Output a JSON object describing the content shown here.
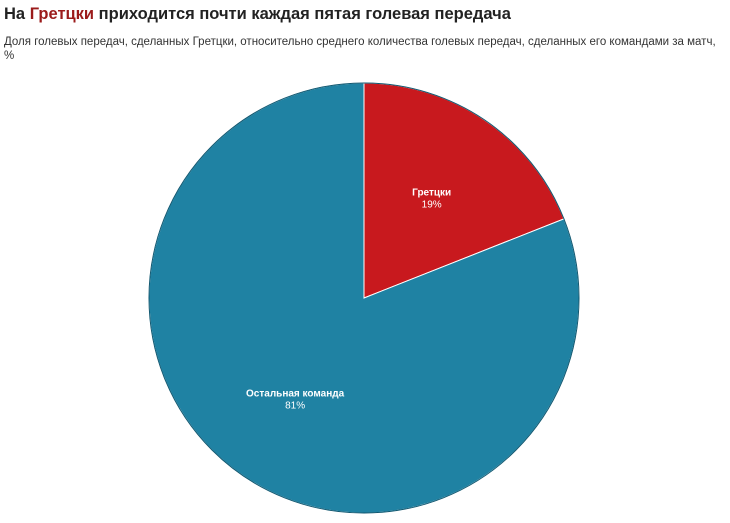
{
  "header": {
    "title_prefix": "На ",
    "title_highlight": "Гретцки",
    "title_suffix": " приходится почти каждая пятая голевая передача",
    "subtitle": "Доля голевых передач, сделанных Гретцки, относительно среднего количества голевых передач, сделанных его командами за матч, %"
  },
  "chart_data": {
    "type": "pie",
    "title": "На Гретцки приходится почти каждая пятая голевая передача",
    "subtitle": "Доля голевых передач, сделанных Гретцки, относительно среднего количества голевых передач, сделанных его командами за матч, %",
    "slices": [
      {
        "label": "Гретцки",
        "value": 19,
        "value_label": "19%",
        "color": "#c8191e"
      },
      {
        "label": "Остальная команда",
        "value": 81,
        "value_label": "81%",
        "color": "#1f82a3"
      }
    ],
    "start_angle": "12 o'clock",
    "direction": "clockwise",
    "slice_border_color": "#ffffff",
    "outline_color": "#0f5770"
  }
}
